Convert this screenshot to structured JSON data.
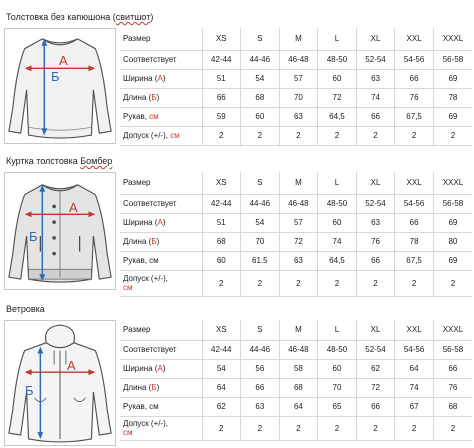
{
  "tables": [
    {
      "title_pre": "Толстовка без капюшона (",
      "title_u": "свитшот",
      "title_post": ")",
      "image_icon": "sweatshirt-icon",
      "markers": {
        "a": "А",
        "b": "Б"
      },
      "header_label": "Размер",
      "sizes": [
        "XS",
        "S",
        "M",
        "L",
        "XL",
        "XXL",
        "XXXL"
      ],
      "rows": [
        {
          "pre": "Соответствует",
          "red": "",
          "post": "",
          "values": [
            "42-44",
            "44-46",
            "46-48",
            "48-50",
            "52-54",
            "54-56",
            "56-58"
          ]
        },
        {
          "pre": "Ширина (",
          "red": "А",
          "post": ")",
          "values": [
            "51",
            "54",
            "57",
            "60",
            "63",
            "66",
            "69"
          ]
        },
        {
          "pre": "Длина (",
          "red": "Б",
          "post": ")",
          "values": [
            "66",
            "68",
            "70",
            "72",
            "74",
            "76",
            "78"
          ]
        },
        {
          "pre": "Рукав, ",
          "red": "см",
          "post": "",
          "values": [
            "59",
            "60",
            "63",
            "64,5",
            "66",
            "67,5",
            "69"
          ]
        },
        {
          "pre": "Допуск (+/-), ",
          "red": "см",
          "post": "",
          "values": [
            "2",
            "2",
            "2",
            "2",
            "2",
            "2",
            "2"
          ]
        }
      ]
    },
    {
      "title_pre": "Куртка толстовка ",
      "title_u": "Бомбер",
      "title_post": "",
      "image_icon": "bomber-jacket-icon",
      "markers": {
        "a": "А",
        "b": "Б"
      },
      "header_label": "Размер",
      "sizes": [
        "XS",
        "S",
        "M",
        "L",
        "XL",
        "XXL",
        "XXXL"
      ],
      "rows": [
        {
          "pre": "Соответствует",
          "red": "",
          "post": "",
          "values": [
            "42-44",
            "44-46",
            "46-48",
            "48-50",
            "52-54",
            "54-56",
            "56-58"
          ]
        },
        {
          "pre": "Ширина (",
          "red": "А",
          "post": ")",
          "values": [
            "51",
            "54",
            "57",
            "60",
            "63",
            "66",
            "69"
          ]
        },
        {
          "pre": "Длина (",
          "red": "Б",
          "post": ")",
          "values": [
            "68",
            "70",
            "72",
            "74",
            "76",
            "78",
            "80"
          ]
        },
        {
          "pre": "Рукав, см",
          "red": "",
          "post": "",
          "values": [
            "60",
            "61.5",
            "63",
            "64,5",
            "66",
            "67,5",
            "69"
          ]
        },
        {
          "pre": "Допуск (+/-), ",
          "red": "см",
          "post": "",
          "values": [
            "2",
            "2",
            "2",
            "2",
            "2",
            "2",
            "2"
          ]
        }
      ]
    },
    {
      "title_pre": "Ветровка",
      "title_u": "",
      "title_post": "",
      "image_icon": "windbreaker-icon",
      "markers": {
        "a": "А",
        "b": "Б"
      },
      "header_label": "Размер",
      "sizes": [
        "XS",
        "S",
        "M",
        "L",
        "XL",
        "XXL",
        "XXXL"
      ],
      "rows": [
        {
          "pre": "Соответствует",
          "red": "",
          "post": "",
          "values": [
            "42-44",
            "44-46",
            "46-48",
            "48-50",
            "52-54",
            "54-56",
            "56-58"
          ]
        },
        {
          "pre": "Ширина (",
          "red": "А",
          "post": ")",
          "values": [
            "54",
            "56",
            "58",
            "60",
            "62",
            "64",
            "66"
          ]
        },
        {
          "pre": "Длина (",
          "red": "Б",
          "post": ")",
          "values": [
            "64",
            "66",
            "68",
            "70",
            "72",
            "74",
            "76"
          ]
        },
        {
          "pre": "Рукав, см",
          "red": "",
          "post": "",
          "values": [
            "62",
            "63",
            "64",
            "65",
            "66",
            "67",
            "68"
          ]
        },
        {
          "pre": "Допуск (+/-), ",
          "red": "см",
          "post": "",
          "values": [
            "2",
            "2",
            "2",
            "2",
            "2",
            "2",
            "2"
          ]
        }
      ]
    }
  ]
}
